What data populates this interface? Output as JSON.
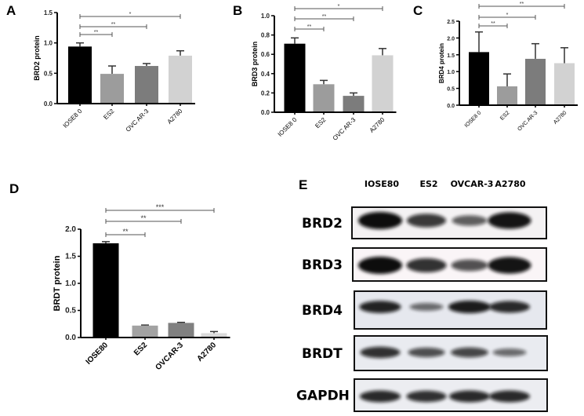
{
  "chart_data": [
    {
      "panel": "A",
      "type": "bar",
      "categories": [
        "IOSE8 0",
        "ES2",
        "OVC AR-3",
        "A2780"
      ],
      "values": [
        0.94,
        0.49,
        0.62,
        0.79
      ],
      "errors": [
        0.06,
        0.13,
        0.04,
        0.08
      ],
      "colors": [
        "#000000",
        "#9c9c9c",
        "#7c7c7c",
        "#d2d2d2"
      ],
      "ylabel": "BRD2 protein",
      "ylim": [
        0,
        1.5
      ],
      "yticks": [
        "0.0",
        "0.5",
        "1.0",
        "1.5"
      ],
      "ytick_values": [
        0,
        0.5,
        1.0,
        1.5
      ],
      "significance": [
        {
          "from": 0,
          "to": 1,
          "label": "**"
        },
        {
          "from": 0,
          "to": 2,
          "label": "**"
        },
        {
          "from": 0,
          "to": 3,
          "label": "*"
        }
      ]
    },
    {
      "panel": "B",
      "type": "bar",
      "categories": [
        "IOSE8 0",
        "ES2",
        "OVC AR-3",
        "A2780"
      ],
      "values": [
        0.71,
        0.29,
        0.17,
        0.59
      ],
      "errors": [
        0.06,
        0.04,
        0.03,
        0.07
      ],
      "colors": [
        "#000000",
        "#9c9c9c",
        "#7c7c7c",
        "#d2d2d2"
      ],
      "ylabel": "BRD3 protein",
      "ylim": [
        0,
        1.0
      ],
      "yticks": [
        "0.0",
        "0.2",
        "0.4",
        "0.6",
        "0.8",
        "1.0"
      ],
      "ytick_values": [
        0,
        0.2,
        0.4,
        0.6,
        0.8,
        1.0
      ],
      "significance": [
        {
          "from": 0,
          "to": 1,
          "label": "**"
        },
        {
          "from": 0,
          "to": 2,
          "label": "**"
        },
        {
          "from": 0,
          "to": 3,
          "label": "*"
        }
      ]
    },
    {
      "panel": "C",
      "type": "bar",
      "categories": [
        "IOSE8 0",
        "ES2",
        "OVC AR-3",
        "A2780"
      ],
      "values": [
        1.58,
        0.56,
        1.38,
        1.25
      ],
      "errors": [
        0.6,
        0.37,
        0.45,
        0.46
      ],
      "colors": [
        "#000000",
        "#9c9c9c",
        "#7c7c7c",
        "#d2d2d2"
      ],
      "ylabel": "BRD4 protein",
      "ylim": [
        0,
        2.5
      ],
      "yticks": [
        "0.0",
        "0.5",
        "1.0",
        "1.5",
        "2.0",
        "2.5"
      ],
      "ytick_values": [
        0,
        0.5,
        1.0,
        1.5,
        2.0,
        2.5
      ],
      "significance": [
        {
          "from": 0,
          "to": 1,
          "label": "**"
        },
        {
          "from": 0,
          "to": 2,
          "label": "*"
        },
        {
          "from": 0,
          "to": 3,
          "label": "**"
        }
      ]
    },
    {
      "panel": "D",
      "type": "bar",
      "categories": [
        "IOSE80",
        "ES2",
        "OVCAR-3",
        "A2780"
      ],
      "values": [
        1.74,
        0.22,
        0.27,
        0.08
      ],
      "errors": [
        0.03,
        0.01,
        0.01,
        0.03
      ],
      "colors": [
        "#000000",
        "#a2a2a2",
        "#808080",
        "#dadada"
      ],
      "ylabel": "BRDT protein",
      "ylim": [
        0,
        2.0
      ],
      "yticks": [
        "0.0",
        "0.5",
        "1.0",
        "1.5",
        "2.0"
      ],
      "ytick_values": [
        0,
        0.5,
        1.0,
        1.5,
        2.0
      ],
      "significance": [
        {
          "from": 0,
          "to": 1,
          "label": "**"
        },
        {
          "from": 0,
          "to": 2,
          "label": "**"
        },
        {
          "from": 0,
          "to": 3,
          "label": "***"
        }
      ]
    }
  ],
  "blot": {
    "panel": "E",
    "lanes": [
      "IOSE80",
      "ES2",
      "OVCAR-3",
      "A2780"
    ],
    "rows": [
      {
        "label": "BRD2",
        "band_intensity": [
          1.0,
          0.7,
          0.45,
          0.95
        ]
      },
      {
        "label": "BRD3",
        "band_intensity": [
          1.0,
          0.75,
          0.55,
          0.95
        ]
      },
      {
        "label": "BRD4",
        "band_intensity": [
          0.85,
          0.35,
          0.9,
          0.8
        ]
      },
      {
        "label": "BRDT",
        "band_intensity": [
          0.75,
          0.55,
          0.6,
          0.35
        ]
      },
      {
        "label": "GAPDH",
        "band_intensity": [
          0.8,
          0.75,
          0.8,
          0.8
        ]
      }
    ]
  }
}
